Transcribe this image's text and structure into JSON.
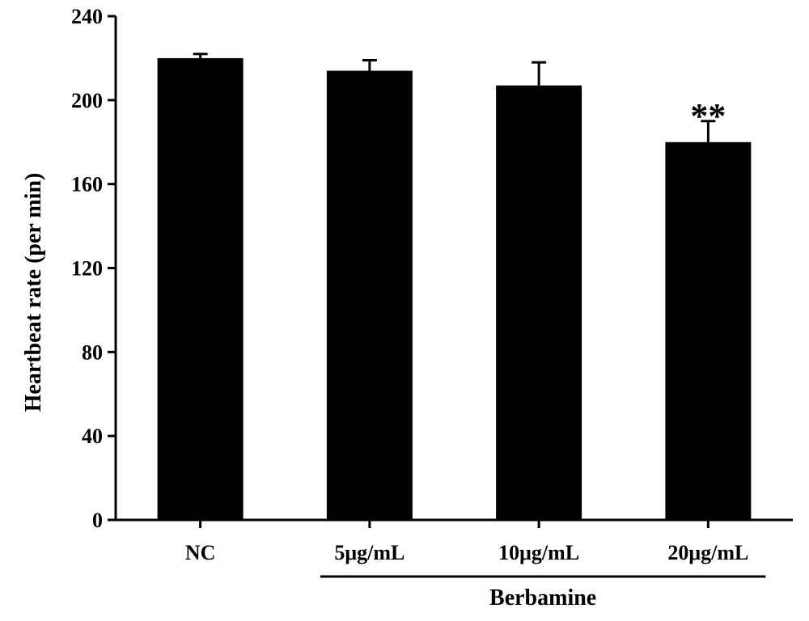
{
  "chart_data": {
    "type": "bar",
    "title": "",
    "xlabel": "",
    "ylabel": "Heartbeat rate (per min)",
    "ylim": [
      0,
      240
    ],
    "yticks": [
      0,
      40,
      80,
      120,
      160,
      200,
      240
    ],
    "categories": [
      "NC",
      "5μg/mL",
      "10μg/mL",
      "20μg/mL"
    ],
    "values": [
      220,
      214,
      207,
      180
    ],
    "errors": [
      2,
      5,
      11,
      10
    ],
    "annotations": [
      {
        "category_index": 3,
        "text": "**"
      }
    ],
    "group_bracket": {
      "label": "Berbamine",
      "from_index": 1,
      "to_index": 3
    },
    "colors": {
      "bar": "#000000",
      "axis": "#000000"
    },
    "grid": false
  }
}
